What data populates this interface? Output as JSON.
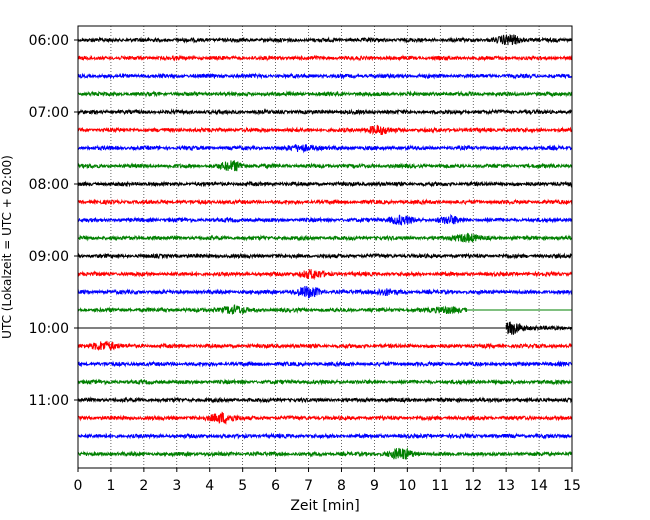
{
  "chart_data": {
    "type": "line",
    "xlabel": "Zeit  [min]",
    "ylabel": "UTC (Lokalzeit = UTC + 02:00)",
    "xlim": [
      0,
      15
    ],
    "x_ticks": [
      0,
      1,
      2,
      3,
      4,
      5,
      6,
      7,
      8,
      9,
      10,
      11,
      12,
      13,
      14,
      15
    ],
    "y_tick_labels": [
      "06:00",
      "07:00",
      "08:00",
      "09:00",
      "10:00",
      "11:00"
    ],
    "grid": "vertical dotted at each minute",
    "trace_interval_min": 15,
    "traces": [
      {
        "start": "06:00",
        "color": "#000000",
        "end_min": 15,
        "events": [
          [
            13.1,
            0.7
          ]
        ]
      },
      {
        "start": "06:15",
        "color": "#ff0000",
        "end_min": 15,
        "events": []
      },
      {
        "start": "06:30",
        "color": "#0000ff",
        "end_min": 15,
        "events": []
      },
      {
        "start": "06:45",
        "color": "#008000",
        "end_min": 15,
        "events": []
      },
      {
        "start": "07:00",
        "color": "#000000",
        "end_min": 15,
        "events": []
      },
      {
        "start": "07:15",
        "color": "#ff0000",
        "end_min": 15,
        "events": [
          [
            9.1,
            0.6
          ]
        ]
      },
      {
        "start": "07:30",
        "color": "#0000ff",
        "end_min": 15,
        "events": [
          [
            6.8,
            0.5
          ]
        ]
      },
      {
        "start": "07:45",
        "color": "#008000",
        "end_min": 15,
        "events": [
          [
            4.7,
            0.7
          ]
        ]
      },
      {
        "start": "08:00",
        "color": "#000000",
        "end_min": 15,
        "events": []
      },
      {
        "start": "08:15",
        "color": "#ff0000",
        "end_min": 15,
        "events": []
      },
      {
        "start": "08:30",
        "color": "#0000ff",
        "end_min": 15,
        "events": [
          [
            9.8,
            0.6
          ],
          [
            11.3,
            0.5
          ]
        ]
      },
      {
        "start": "08:45",
        "color": "#008000",
        "end_min": 15,
        "events": [
          [
            11.8,
            0.6
          ]
        ]
      },
      {
        "start": "09:00",
        "color": "#000000",
        "end_min": 15,
        "events": []
      },
      {
        "start": "09:15",
        "color": "#ff0000",
        "end_min": 15,
        "events": [
          [
            7.1,
            0.6
          ]
        ]
      },
      {
        "start": "09:30",
        "color": "#0000ff",
        "end_min": 15,
        "events": [
          [
            7.0,
            0.8
          ],
          [
            9.3,
            0.4
          ]
        ]
      },
      {
        "start": "09:45",
        "color": "#008000",
        "end_min": 11.8,
        "events": [
          [
            4.7,
            0.6
          ],
          [
            11.2,
            0.5
          ]
        ]
      },
      {
        "start": "10:00",
        "color": "#000000",
        "end_min": 15,
        "start_min": 13.0,
        "events": [
          [
            13.2,
            0.9
          ]
        ]
      },
      {
        "start": "10:15",
        "color": "#ff0000",
        "end_min": 15,
        "events": [
          [
            0.8,
            0.7
          ]
        ]
      },
      {
        "start": "10:30",
        "color": "#0000ff",
        "end_min": 15,
        "events": []
      },
      {
        "start": "10:45",
        "color": "#008000",
        "end_min": 15,
        "events": []
      },
      {
        "start": "11:00",
        "color": "#000000",
        "end_min": 15,
        "events": []
      },
      {
        "start": "11:15",
        "color": "#ff0000",
        "end_min": 15,
        "events": [
          [
            4.4,
            0.8
          ]
        ]
      },
      {
        "start": "11:30",
        "color": "#0000ff",
        "end_min": 15,
        "events": []
      },
      {
        "start": "11:45",
        "color": "#008000",
        "end_min": 15,
        "events": [
          [
            9.8,
            0.8
          ]
        ]
      }
    ]
  }
}
